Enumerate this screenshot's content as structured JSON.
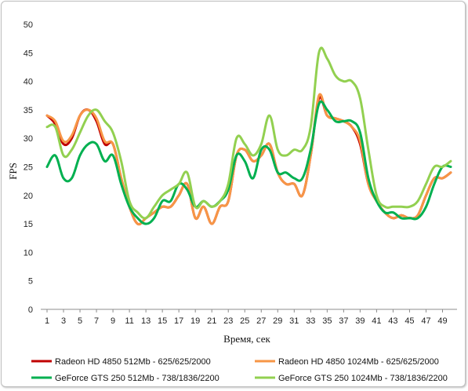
{
  "chart_data": {
    "type": "line",
    "title": "",
    "xlabel": "Время, сек",
    "ylabel": "FPS",
    "ylim": [
      0,
      50
    ],
    "ytick_step": 5,
    "x_range": [
      1,
      50
    ],
    "x_tick_labels": [
      "1",
      "3",
      "5",
      "7",
      "9",
      "11",
      "13",
      "15",
      "17",
      "19",
      "21",
      "23",
      "25",
      "27",
      "29",
      "31",
      "33",
      "35",
      "37",
      "39",
      "41",
      "43",
      "45",
      "47",
      "49"
    ],
    "grid": false,
    "legend_position": "bottom",
    "x": [
      1,
      2,
      3,
      4,
      5,
      6,
      7,
      8,
      9,
      10,
      11,
      12,
      13,
      14,
      15,
      16,
      17,
      18,
      19,
      20,
      21,
      22,
      23,
      24,
      25,
      26,
      27,
      28,
      29,
      30,
      31,
      32,
      33,
      34,
      35,
      36,
      37,
      38,
      39,
      40,
      41,
      42,
      43,
      44,
      45,
      46,
      47,
      48,
      49,
      50
    ],
    "series": [
      {
        "name": "Radeon HD 4850 512Mb - 625/625/2000",
        "color": "#c00000",
        "values": [
          34,
          32.5,
          29,
          30,
          34,
          35,
          33,
          29,
          29,
          23,
          18,
          15,
          16,
          17,
          18,
          18,
          20,
          22,
          16,
          18,
          15,
          18,
          19,
          27,
          28,
          26,
          27,
          29,
          24,
          22,
          22,
          20,
          27,
          37,
          34,
          33.5,
          33,
          32,
          29,
          22,
          19,
          17,
          16,
          16.5,
          16,
          16.5,
          20,
          23,
          23,
          24
        ]
      },
      {
        "name": "Radeon HD 4850 1024Mb - 625/625/2000",
        "color": "#f79646",
        "values": [
          34,
          33,
          29.5,
          30.5,
          34,
          35,
          33.5,
          29.5,
          29,
          23,
          18,
          15,
          16,
          17,
          18,
          18,
          20,
          22,
          16,
          18,
          15,
          18,
          19,
          27,
          28,
          26,
          27,
          29,
          24,
          22,
          22,
          20,
          27,
          37.5,
          34,
          33.5,
          33,
          32,
          29.5,
          22,
          19,
          17,
          16,
          16.5,
          16,
          16.5,
          20,
          23,
          23,
          24
        ]
      },
      {
        "name": "GeForce GTS 250 512Mb - 738/1836/2200",
        "color": "#00b050",
        "values": [
          25,
          27,
          23,
          23,
          27,
          29,
          29,
          26,
          27,
          22,
          18,
          16,
          15,
          16,
          19,
          19,
          22,
          21,
          18,
          19,
          18,
          19,
          21,
          27,
          26,
          23,
          28,
          28,
          24,
          24,
          23,
          23,
          28,
          36,
          35,
          33,
          33,
          33,
          31,
          23,
          19,
          17,
          17,
          16,
          16,
          16,
          18,
          22,
          25,
          25
        ]
      },
      {
        "name": "GeForce GTS 250 1024Mb - 738/1836/2200",
        "color": "#92d050",
        "values": [
          32,
          32,
          27,
          28,
          31,
          34,
          35,
          33,
          31,
          26,
          19,
          17,
          16,
          18,
          20,
          21,
          22,
          24,
          18,
          19,
          18,
          19,
          22,
          30,
          29,
          27,
          29,
          34,
          28,
          27,
          28,
          28,
          32,
          45,
          44,
          41,
          40,
          40,
          37,
          28,
          20,
          18,
          18,
          18,
          18,
          19,
          22,
          25,
          25,
          26
        ]
      }
    ]
  }
}
